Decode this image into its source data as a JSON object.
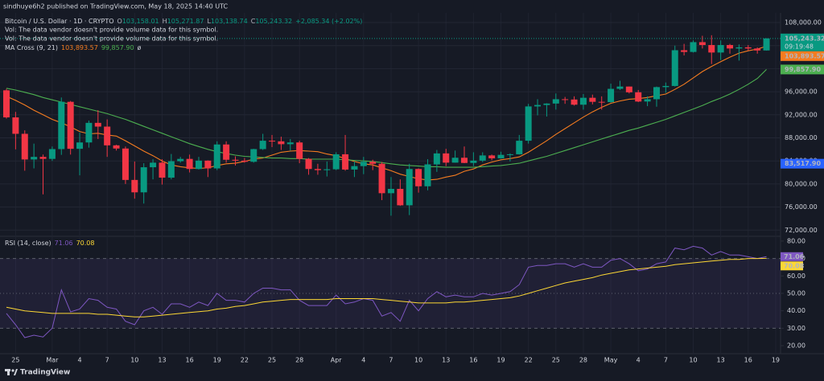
{
  "publisher": "sindhuye6h2 published on TradingView.com, May 18, 2025 14:40 UTC",
  "footer": "TradingView",
  "chart_data": [
    {
      "type": "candlestick",
      "title": "Bitcoin / U.S. Dollar · 1D · CRYPTO",
      "ohlc_legend": [
        {
          "key": "O",
          "value": "103,158.01"
        },
        {
          "key": "H",
          "value": "105,271.87"
        },
        {
          "key": "L",
          "value": "103,138.74"
        },
        {
          "key": "C",
          "value": "105,243.32"
        }
      ],
      "change": "+2,085.34 (+2.02%)",
      "notes": [
        "Vol: The data vendor doesn't provide volume data for this symbol.",
        "Vol: The data vendor doesn't provide volume data for this symbol."
      ],
      "indicator": "MA Cross (9, 21)",
      "indicator_extra": "ø",
      "up_color": "#089981",
      "down_color": "#f23645",
      "ylim": [
        71200,
        109400
      ],
      "yticks": [
        {
          "value": 72000,
          "label": "72,000.00"
        },
        {
          "value": 76000,
          "label": "76,000.00"
        },
        {
          "value": 80000,
          "label": "80,000.00"
        },
        {
          "value": 84000,
          "label": "84,000.00"
        },
        {
          "value": 88000,
          "label": "88,000.00"
        },
        {
          "value": 92000,
          "label": "92,000.00"
        },
        {
          "value": 96000,
          "label": "96,000.00"
        },
        {
          "value": 100000,
          "label": "100,000.00"
        },
        {
          "value": 104000,
          "label": "104,000.00"
        },
        {
          "value": 108000,
          "label": "108,000.00"
        }
      ],
      "grid": true,
      "last_price_label": "105,243.32",
      "countdown": "09:19:48",
      "marker_price": {
        "value": 83517.9,
        "label": "83,517.90",
        "color": "#2962ff"
      },
      "categories": [
        null,
        "25",
        null,
        null,
        null,
        "Mar",
        null,
        null,
        "4",
        null,
        null,
        "7",
        null,
        null,
        "10",
        null,
        null,
        "13",
        null,
        null,
        "16",
        null,
        null,
        "19",
        null,
        null,
        "22",
        null,
        null,
        "25",
        null,
        null,
        "28",
        null,
        null,
        null,
        "Apr",
        null,
        null,
        "4",
        null,
        null,
        "7",
        null,
        null,
        "10",
        null,
        null,
        "13",
        null,
        null,
        "16",
        null,
        null,
        "19",
        null,
        null,
        "22",
        null,
        null,
        "25",
        null,
        null,
        "28",
        null,
        null,
        "May",
        null,
        null,
        "4",
        null,
        null,
        "7",
        null,
        null,
        "10",
        null,
        null,
        "13",
        null,
        null,
        "16",
        null,
        null,
        "19"
      ],
      "open": [
        96250,
        91550,
        88700,
        84250,
        84700,
        84350,
        86050,
        94250,
        86100,
        87200,
        90600,
        89950,
        86700,
        86150,
        80700,
        78550,
        82900,
        83700,
        81100,
        83950,
        84350,
        82600,
        84050,
        82700,
        86850,
        84200,
        84050,
        83850,
        86050,
        87500,
        87400,
        86900,
        87200,
        84350,
        82600,
        82400,
        82550,
        85150,
        82500,
        83100,
        83850,
        83500,
        78400,
        79150,
        76300,
        82600,
        79600,
        83400,
        85300,
        83700,
        84550,
        83650,
        84050,
        84950,
        84450,
        85050,
        85150,
        87500,
        93450,
        93700,
        93950,
        94700,
        94650,
        93750,
        94950,
        94250,
        94200,
        96500,
        96900,
        95900,
        94300,
        94700,
        96800,
        97000,
        103200,
        102900,
        104600,
        104100,
        102800,
        104100,
        103500,
        103700,
        103500,
        103158.01,
        null
      ],
      "high": [
        96500,
        92500,
        89300,
        87000,
        85100,
        86500,
        95000,
        94400,
        88900,
        91000,
        92800,
        91200,
        86800,
        86500,
        83900,
        83600,
        84300,
        84300,
        85200,
        84700,
        85100,
        84700,
        84100,
        87400,
        87400,
        84800,
        84500,
        86100,
        88700,
        88500,
        88200,
        87800,
        87500,
        84500,
        83500,
        83900,
        85500,
        88500,
        83900,
        84700,
        84200,
        83800,
        81200,
        80800,
        83500,
        82700,
        84300,
        85900,
        86100,
        85800,
        86500,
        85500,
        85500,
        85100,
        85600,
        85300,
        88500,
        93900,
        94700,
        94000,
        95700,
        95100,
        95200,
        95600,
        95500,
        95200,
        97400,
        97900,
        96900,
        96300,
        95200,
        96900,
        97600,
        104000,
        104300,
        104900,
        105700,
        105800,
        104900,
        104300,
        104200,
        104100,
        103700,
        105271.87,
        null
      ],
      "low": [
        91350,
        86000,
        82300,
        82700,
        78200,
        84000,
        85050,
        85100,
        81500,
        86300,
        87800,
        84700,
        85800,
        80000,
        77450,
        76600,
        80800,
        79900,
        80800,
        83700,
        82000,
        82500,
        81200,
        82400,
        83700,
        83200,
        83700,
        83700,
        85900,
        86400,
        85900,
        85800,
        83600,
        81600,
        81600,
        81300,
        82400,
        82300,
        81200,
        81700,
        82400,
        77200,
        74500,
        76200,
        74600,
        78500,
        78900,
        82100,
        83100,
        83700,
        83600,
        83100,
        83800,
        84100,
        84400,
        83900,
        85100,
        87000,
        91900,
        91700,
        92900,
        93900,
        93600,
        92900,
        93800,
        92900,
        94100,
        96300,
        95700,
        94200,
        93500,
        93400,
        95800,
        96900,
        102300,
        102800,
        103500,
        100800,
        101500,
        102600,
        101400,
        103100,
        102600,
        103138.74,
        null
      ],
      "close": [
        91550,
        88700,
        84250,
        84700,
        84350,
        86050,
        94250,
        86100,
        87200,
        90600,
        89950,
        86700,
        86150,
        80700,
        78550,
        82900,
        83700,
        81100,
        83950,
        84350,
        82600,
        84050,
        82700,
        86850,
        84200,
        84050,
        83850,
        86050,
        87500,
        87400,
        86900,
        87200,
        84350,
        82600,
        82400,
        82550,
        85150,
        82500,
        83100,
        83850,
        83500,
        78400,
        79150,
        76300,
        82600,
        79600,
        83400,
        85300,
        83700,
        84550,
        83650,
        84050,
        84950,
        84450,
        85050,
        85150,
        87500,
        93450,
        93700,
        93950,
        94700,
        94650,
        93750,
        94950,
        94250,
        94200,
        96500,
        96900,
        95900,
        94300,
        94700,
        96800,
        97000,
        103200,
        102900,
        104600,
        104100,
        102800,
        104100,
        103500,
        103700,
        103500,
        103150,
        105243.32,
        null
      ],
      "lines": [
        {
          "color": "#f57c20",
          "last_label": "103,893.57",
          "values": [
            95200,
            94500,
            93700,
            92800,
            92000,
            91200,
            90600,
            89900,
            89100,
            88700,
            88800,
            88500,
            88300,
            87500,
            86600,
            85700,
            84900,
            84000,
            83300,
            83000,
            82800,
            82700,
            82800,
            83200,
            83500,
            83600,
            83900,
            84300,
            84500,
            85000,
            85500,
            85700,
            85800,
            85700,
            85600,
            85200,
            84900,
            84400,
            83900,
            83500,
            83300,
            82800,
            82300,
            81700,
            81300,
            80900,
            80700,
            80800,
            81200,
            81500,
            82200,
            82600,
            83300,
            83800,
            84200,
            84400,
            84700,
            85500,
            86500,
            87500,
            88600,
            89600,
            90600,
            91600,
            92500,
            93300,
            94000,
            94400,
            94700,
            94800,
            95000,
            95300,
            95600,
            96400,
            97300,
            98400,
            99500,
            100400,
            101200,
            102000,
            102700,
            103100,
            103400,
            103893.57,
            null
          ]
        },
        {
          "color": "#4caf50",
          "last_label": "99,857.90",
          "values": [
            96600,
            96300,
            95900,
            95500,
            95000,
            94600,
            94200,
            93800,
            93400,
            93000,
            92600,
            92200,
            91700,
            91200,
            90600,
            90000,
            89400,
            88800,
            88200,
            87600,
            87000,
            86500,
            86000,
            85600,
            85300,
            85000,
            84800,
            84700,
            84600,
            84500,
            84500,
            84400,
            84400,
            84300,
            84300,
            84300,
            84300,
            84200,
            84100,
            84000,
            83900,
            83700,
            83500,
            83300,
            83200,
            83100,
            83000,
            83000,
            82900,
            82900,
            82900,
            82900,
            83000,
            83100,
            83200,
            83400,
            83600,
            84000,
            84400,
            84800,
            85300,
            85800,
            86300,
            86800,
            87300,
            87800,
            88300,
            88800,
            89300,
            89700,
            90200,
            90700,
            91200,
            91800,
            92400,
            93000,
            93600,
            94300,
            94900,
            95600,
            96400,
            97300,
            98300,
            99857.9,
            null
          ]
        }
      ]
    },
    {
      "type": "line",
      "title": "RSI (14, close)",
      "ylim": [
        15.4,
        81.8
      ],
      "yticks": [
        {
          "value": 20,
          "label": "20.00"
        },
        {
          "value": 30,
          "label": "30.00"
        },
        {
          "value": 40,
          "label": "40.00"
        },
        {
          "value": 50,
          "label": "50.00"
        },
        {
          "value": 60,
          "label": "60.00"
        },
        {
          "value": 70,
          "label": "70.00"
        },
        {
          "value": 80,
          "label": "80.00"
        }
      ],
      "bands": [
        30,
        50,
        70
      ],
      "series": [
        {
          "color": "#7e57c2",
          "values": [
            38.5,
            32,
            24.6,
            26,
            25,
            30,
            52,
            39.4,
            41,
            47,
            46,
            42,
            41,
            34,
            32,
            40,
            42,
            38,
            44,
            44,
            42,
            45,
            43,
            50,
            46,
            46,
            45,
            50,
            53,
            53,
            52,
            52,
            46,
            43,
            43,
            43,
            49,
            44,
            45,
            47,
            46,
            37,
            39,
            34,
            46,
            40,
            47,
            51,
            48,
            49,
            48,
            48,
            50,
            49,
            50,
            51,
            55,
            65,
            66,
            66,
            67,
            67,
            65,
            67,
            65,
            65,
            69,
            70,
            67,
            63,
            64,
            67,
            68,
            76,
            75,
            77,
            76,
            72,
            74,
            72,
            72,
            71,
            70,
            71.06,
            null
          ]
        },
        {
          "color": "#fdd835",
          "values": [
            42,
            41,
            40,
            39.5,
            39,
            38.5,
            38.5,
            38.5,
            38.5,
            38.5,
            38,
            38,
            37.5,
            37,
            36.5,
            36.5,
            37,
            37.5,
            38,
            38.5,
            39,
            39.5,
            40,
            41,
            41.5,
            42.5,
            43,
            44,
            45,
            45.5,
            46,
            46.5,
            46.5,
            46.5,
            46.5,
            46.5,
            47,
            47,
            47,
            47,
            47,
            46.5,
            46,
            45.5,
            45,
            44.5,
            44.5,
            44.5,
            44.5,
            45,
            45,
            45.5,
            46,
            46.5,
            47,
            47.5,
            48.5,
            50,
            51.5,
            53,
            54.5,
            56,
            57,
            58,
            59,
            60.5,
            61.5,
            62.5,
            63.5,
            64,
            64.5,
            65,
            65.5,
            66.5,
            67,
            67.5,
            68,
            68.5,
            69,
            69.5,
            69.5,
            70,
            70,
            70.08,
            null
          ]
        }
      ]
    }
  ]
}
